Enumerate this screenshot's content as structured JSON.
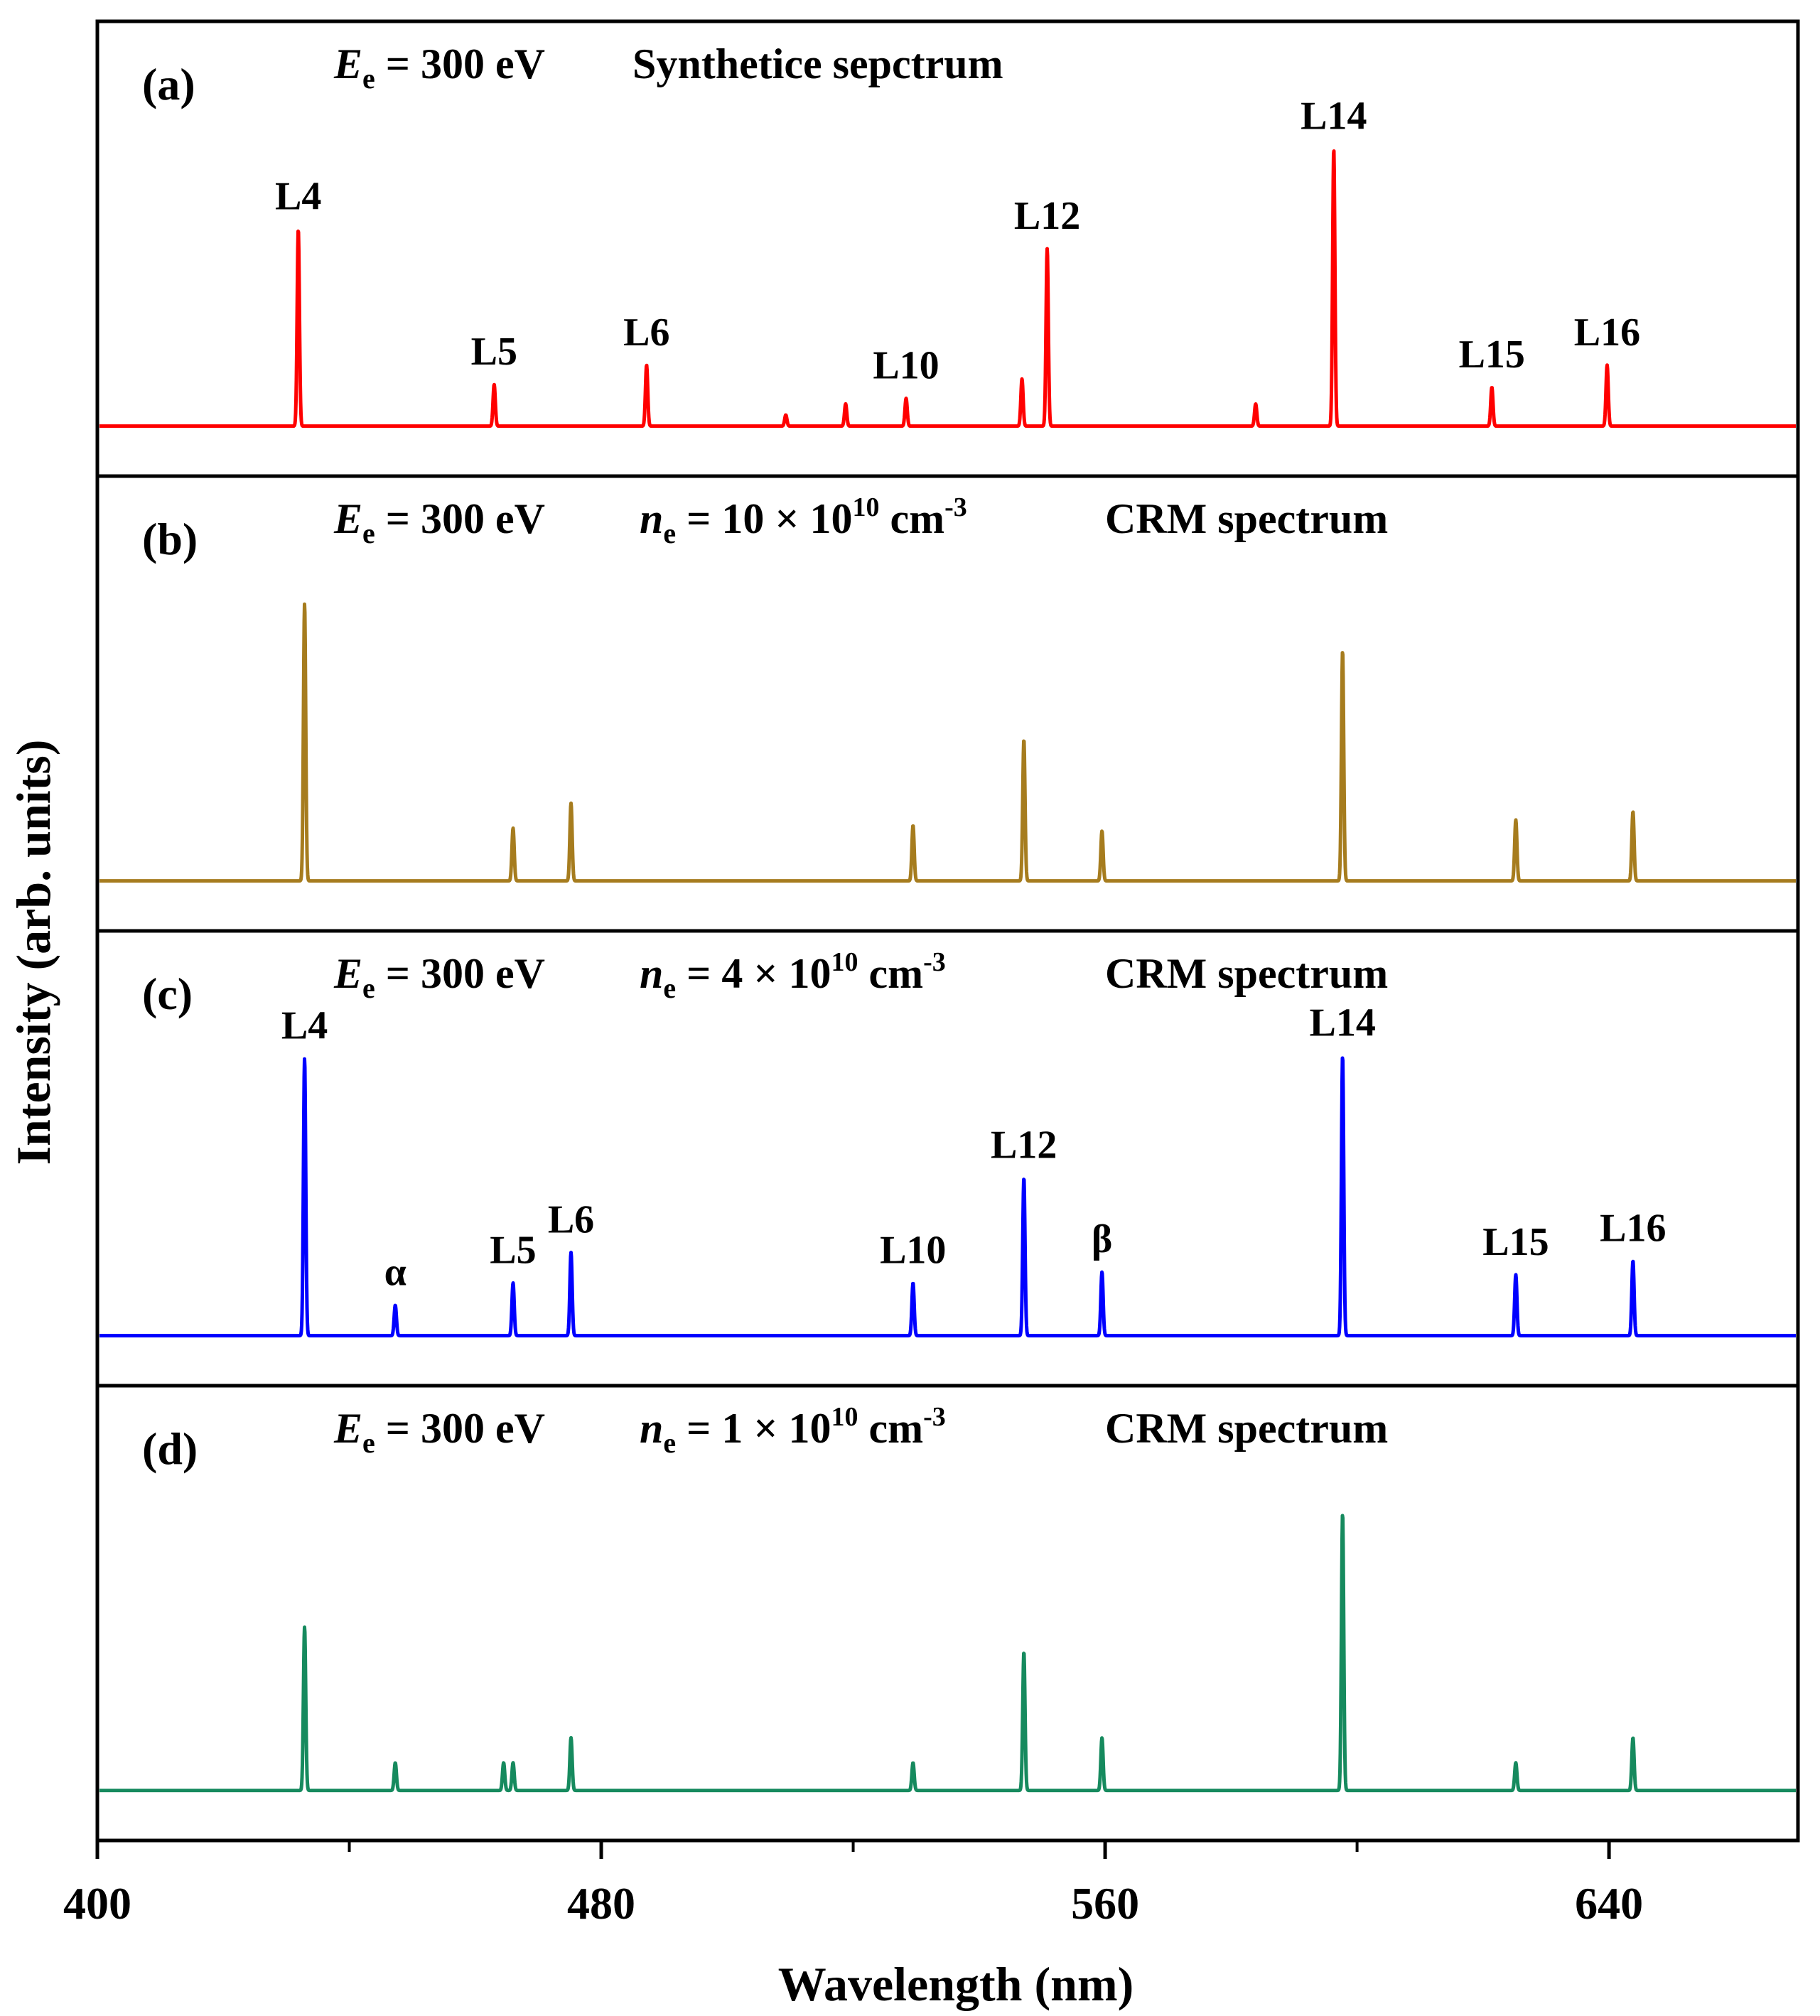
{
  "chart_data": {
    "type": "line",
    "xlabel": "Wavelength (nm)",
    "ylabel": "Intensity (arb. units)",
    "xlim": [
      400,
      670
    ],
    "xticks": [
      400,
      480,
      560,
      640
    ],
    "xminor_ticks": [
      440,
      520,
      600
    ],
    "shared_x": true,
    "panels": [
      {
        "label": "(a)",
        "header": {
          "energy_symbol": "E",
          "energy_sub": "e",
          "energy_value": "= 300 eV",
          "density_symbol": "",
          "density_sub": "",
          "density_value": "",
          "density_exp": "",
          "density_unit": "",
          "density_unit_exp": "",
          "spectrum": "Synthetice sepctrum"
        },
        "color": "#ff0000",
        "ylim": [
          0,
          1.0
        ],
        "peaks": [
          {
            "x": 431.9,
            "y": 0.71,
            "label": "L4"
          },
          {
            "x": 463.0,
            "y": 0.15,
            "label": "L5"
          },
          {
            "x": 487.2,
            "y": 0.22,
            "label": "L6"
          },
          {
            "x": 509.3,
            "y": 0.04,
            "label": ""
          },
          {
            "x": 518.8,
            "y": 0.08,
            "label": ""
          },
          {
            "x": 528.4,
            "y": 0.1,
            "label": "L10"
          },
          {
            "x": 546.8,
            "y": 0.17,
            "label": ""
          },
          {
            "x": 550.8,
            "y": 0.64,
            "label": "L12"
          },
          {
            "x": 583.9,
            "y": 0.08,
            "label": ""
          },
          {
            "x": 596.3,
            "y": 1.0,
            "label": "L14"
          },
          {
            "x": 621.4,
            "y": 0.14,
            "label": "L15"
          },
          {
            "x": 639.7,
            "y": 0.22,
            "label": "L16"
          }
        ]
      },
      {
        "label": "(b)",
        "header": {
          "energy_symbol": "E",
          "energy_sub": "e",
          "energy_value": "= 300 eV",
          "density_symbol": "n",
          "density_sub": "e",
          "density_value": "= 10 × 10",
          "density_exp": "10",
          "density_unit": " cm",
          "density_unit_exp": "-3",
          "spectrum": "CRM spectrum"
        },
        "color": "#a67c1e",
        "ylim": [
          0,
          1.0
        ],
        "peaks": [
          {
            "x": 432.9,
            "y": 1.0,
            "label": ""
          },
          {
            "x": 466.0,
            "y": 0.19,
            "label": ""
          },
          {
            "x": 475.2,
            "y": 0.28,
            "label": ""
          },
          {
            "x": 529.5,
            "y": 0.2,
            "label": ""
          },
          {
            "x": 547.1,
            "y": 0.51,
            "label": ""
          },
          {
            "x": 559.5,
            "y": 0.18,
            "label": ""
          },
          {
            "x": 597.7,
            "y": 0.83,
            "label": ""
          },
          {
            "x": 625.2,
            "y": 0.22,
            "label": ""
          },
          {
            "x": 643.8,
            "y": 0.25,
            "label": ""
          }
        ]
      },
      {
        "label": "(c)",
        "header": {
          "energy_symbol": "E",
          "energy_sub": "e",
          "energy_value": "= 300 eV",
          "density_symbol": "n",
          "density_sub": "e",
          "density_value": "= 4 × 10",
          "density_exp": "10",
          "density_unit": " cm",
          "density_unit_exp": "-3",
          "spectrum": "CRM spectrum"
        },
        "color": "#0000ff",
        "ylim": [
          0,
          1.0
        ],
        "peaks": [
          {
            "x": 432.9,
            "y": 1.0,
            "label": "L4"
          },
          {
            "x": 447.3,
            "y": 0.11,
            "label": "α"
          },
          {
            "x": 466.0,
            "y": 0.19,
            "label": "L5"
          },
          {
            "x": 475.2,
            "y": 0.3,
            "label": "L6"
          },
          {
            "x": 529.5,
            "y": 0.19,
            "label": "L10"
          },
          {
            "x": 547.1,
            "y": 0.57,
            "label": "L12"
          },
          {
            "x": 559.5,
            "y": 0.23,
            "label": "β"
          },
          {
            "x": 597.7,
            "y": 1.01,
            "label": "L14"
          },
          {
            "x": 625.2,
            "y": 0.22,
            "label": "L15"
          },
          {
            "x": 643.8,
            "y": 0.27,
            "label": "L16"
          }
        ]
      },
      {
        "label": "(d)",
        "header": {
          "energy_symbol": "E",
          "energy_sub": "e",
          "energy_value": "= 300 eV",
          "density_symbol": "n",
          "density_sub": "e",
          "density_value": "= 1 × 10",
          "density_exp": "10",
          "density_unit": " cm",
          "density_unit_exp": "-3",
          "spectrum": "CRM spectrum"
        },
        "color": "#168a5e",
        "ylim": [
          0,
          1.0
        ],
        "peaks": [
          {
            "x": 432.9,
            "y": 0.59,
            "label": ""
          },
          {
            "x": 447.3,
            "y": 0.1,
            "label": ""
          },
          {
            "x": 464.5,
            "y": 0.1,
            "label": ""
          },
          {
            "x": 466.0,
            "y": 0.1,
            "label": ""
          },
          {
            "x": 475.2,
            "y": 0.19,
            "label": ""
          },
          {
            "x": 529.5,
            "y": 0.1,
            "label": ""
          },
          {
            "x": 547.1,
            "y": 0.5,
            "label": ""
          },
          {
            "x": 559.5,
            "y": 0.19,
            "label": ""
          },
          {
            "x": 597.7,
            "y": 1.0,
            "label": ""
          },
          {
            "x": 625.2,
            "y": 0.1,
            "label": ""
          },
          {
            "x": 643.8,
            "y": 0.19,
            "label": ""
          }
        ]
      }
    ]
  }
}
